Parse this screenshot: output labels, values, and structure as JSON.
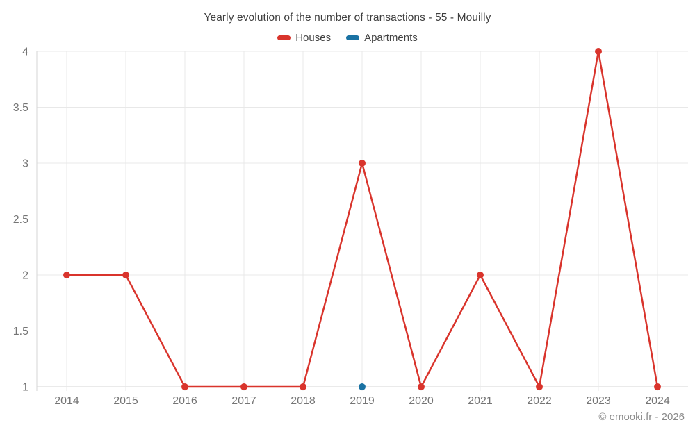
{
  "header": {
    "title": "Yearly evolution of the number of transactions - 55 - Mouilly"
  },
  "legend": {
    "items": [
      {
        "label": "Houses",
        "color": "#d9342c"
      },
      {
        "label": "Apartments",
        "color": "#1a72a3"
      }
    ]
  },
  "footer": {
    "credit": "© emooki.fr - 2026"
  },
  "chart_data": {
    "type": "line",
    "title": "Yearly evolution of the number of transactions - 55 - Mouilly",
    "x": [
      2014,
      2015,
      2016,
      2017,
      2018,
      2019,
      2020,
      2021,
      2022,
      2023,
      2024
    ],
    "series": [
      {
        "name": "Houses",
        "color": "#d9342c",
        "values": [
          2,
          2,
          1,
          1,
          1,
          3,
          1,
          2,
          1,
          4,
          1
        ]
      },
      {
        "name": "Apartments",
        "color": "#1a72a3",
        "values": [
          null,
          null,
          null,
          null,
          null,
          1,
          null,
          null,
          null,
          null,
          null
        ]
      }
    ],
    "xlabel": "",
    "ylabel": "",
    "ylim": [
      1,
      4
    ],
    "yticks": [
      1,
      1.5,
      2,
      2.5,
      3,
      3.5,
      4
    ],
    "grid": true,
    "legend_position": "top",
    "colors": {
      "gridline": "#e8e8e8",
      "axis": "#d6d6d6",
      "tick_label": "#757575"
    }
  }
}
